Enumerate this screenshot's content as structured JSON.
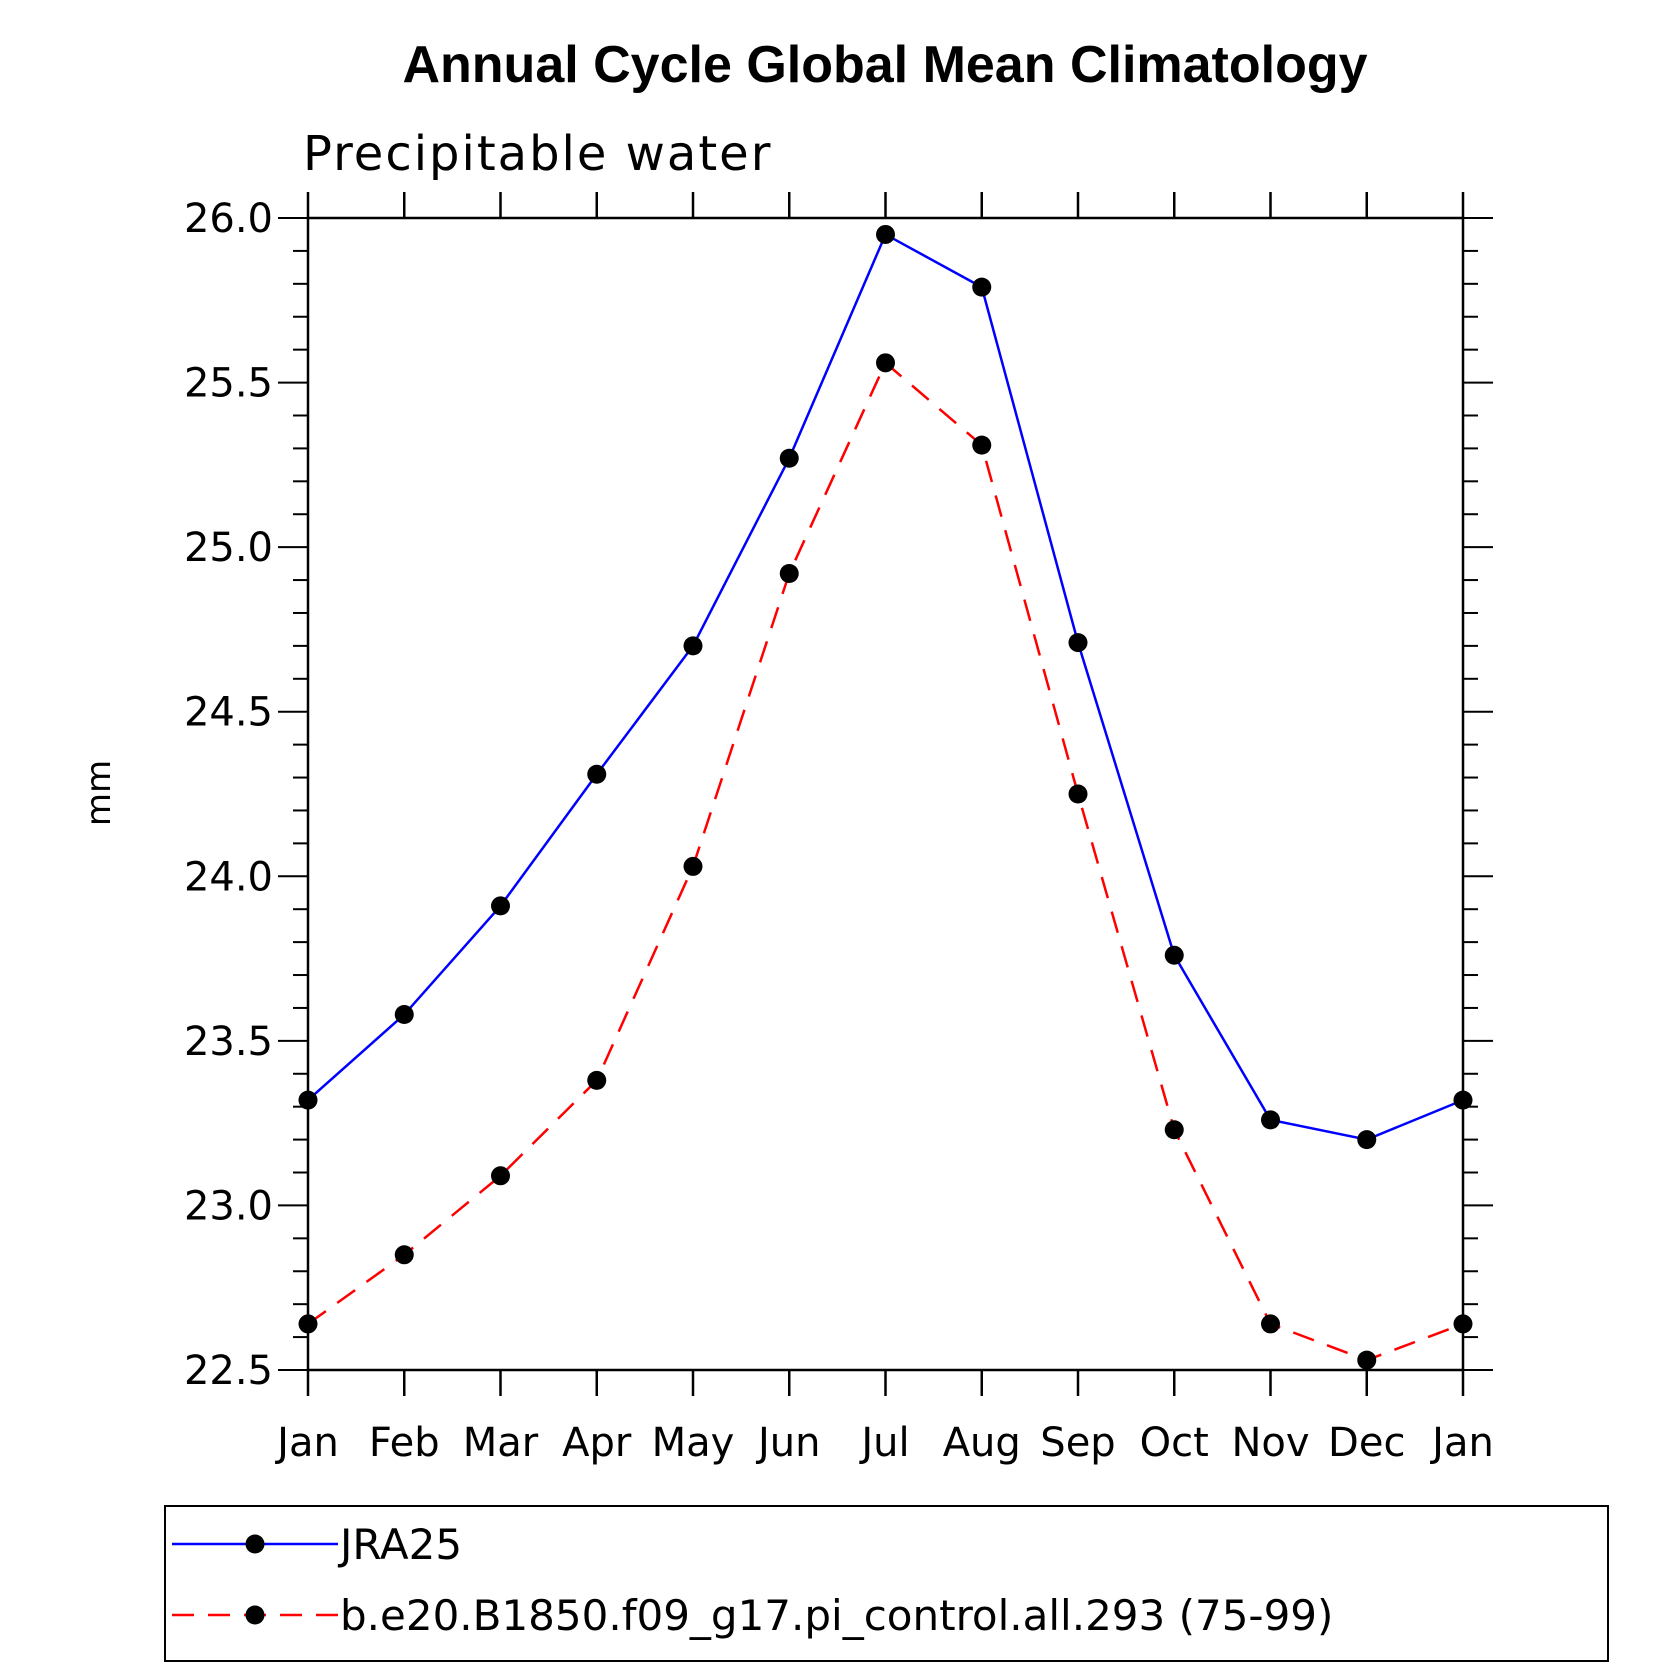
{
  "chart_data": {
    "type": "line",
    "title": "Annual Cycle Global Mean Climatology",
    "subtitle": "Precipitable water",
    "xlabel": "",
    "ylabel": "mm",
    "categories": [
      "Jan",
      "Feb",
      "Mar",
      "Apr",
      "May",
      "Jun",
      "Jul",
      "Aug",
      "Sep",
      "Oct",
      "Nov",
      "Dec",
      "Jan"
    ],
    "ylim": [
      22.5,
      26.0
    ],
    "yticks": [
      "26.0",
      "25.5",
      "25.0",
      "24.5",
      "24.0",
      "23.5",
      "23.0",
      "22.5"
    ],
    "grid": false,
    "legend_position": "bottom",
    "series": [
      {
        "name": "JRA25",
        "color": "#0000ff",
        "dash": "solid",
        "marker": "filled-circle",
        "values": [
          23.32,
          23.58,
          23.91,
          24.31,
          24.7,
          25.27,
          25.95,
          25.79,
          24.71,
          23.76,
          23.26,
          23.2,
          23.32
        ]
      },
      {
        "name": "b.e20.B1850.f09_g17.pi_control.all.293 (75-99)",
        "color": "#ff0000",
        "dash": "dashed",
        "marker": "filled-circle",
        "values": [
          22.64,
          22.85,
          23.09,
          23.38,
          24.03,
          24.92,
          25.56,
          25.31,
          24.25,
          23.23,
          22.64,
          22.53,
          22.64
        ]
      }
    ]
  }
}
